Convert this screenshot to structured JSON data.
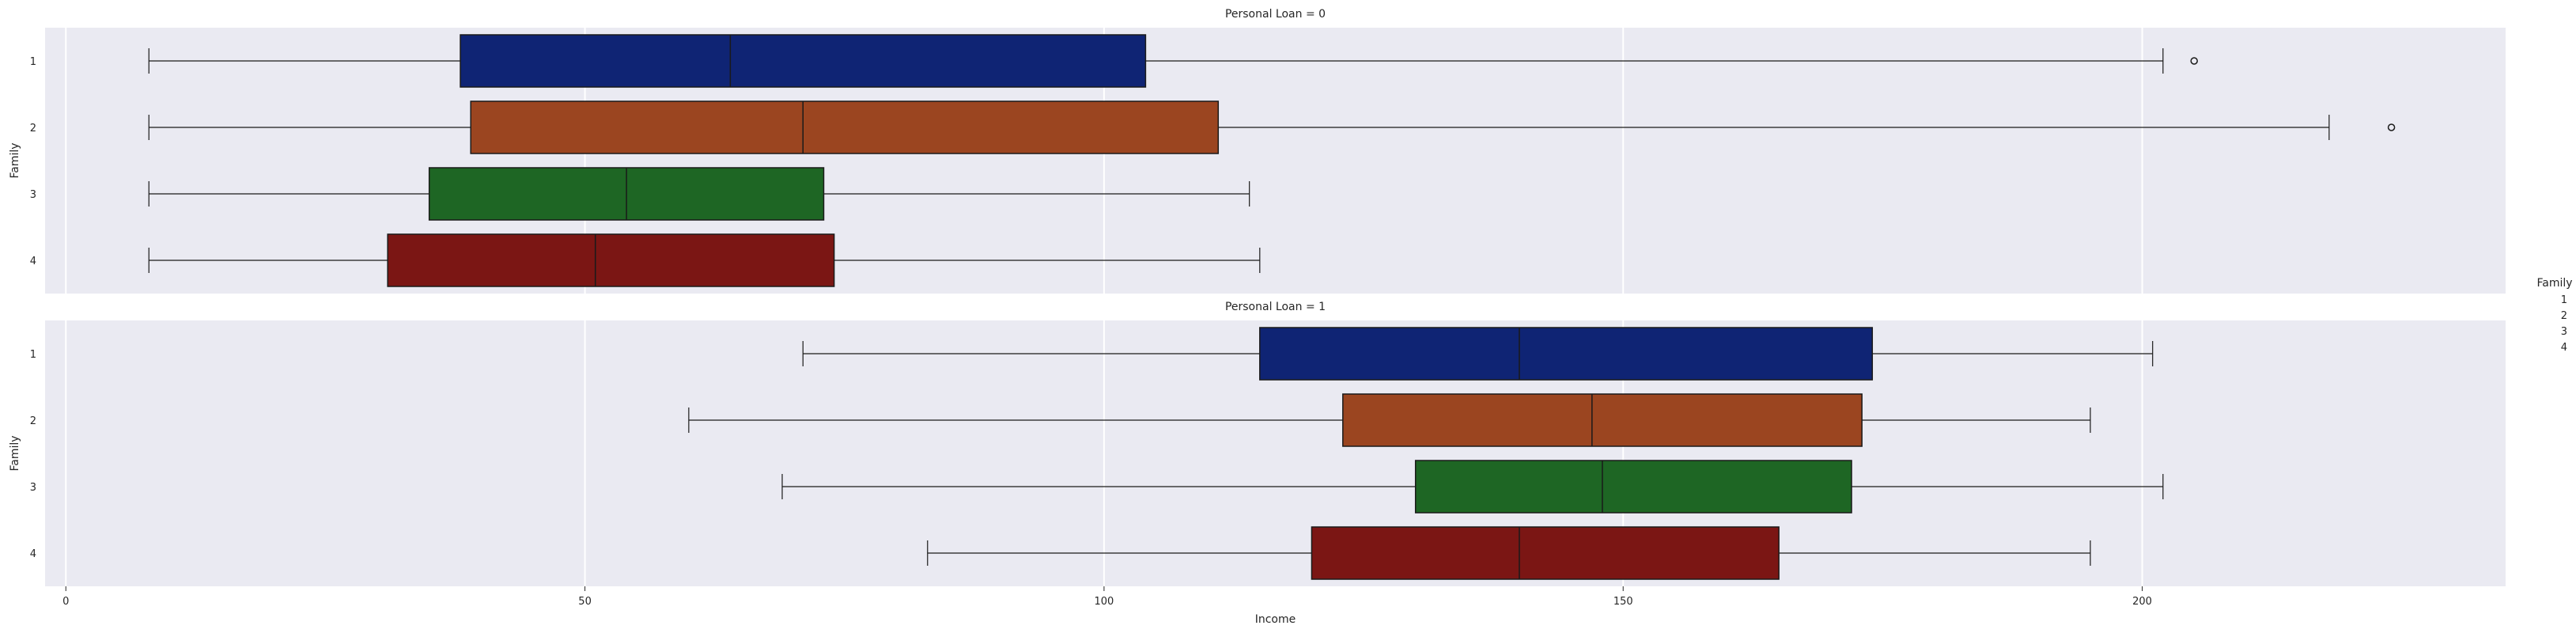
{
  "chart_data": {
    "type": "boxplot",
    "orientation": "horizontal",
    "xlabel": "Income",
    "ylabel": "Family",
    "xlim": [
      -2,
      235
    ],
    "xticks": [
      0,
      50,
      100,
      150,
      200
    ],
    "categories": [
      "1",
      "2",
      "3",
      "4"
    ],
    "grid": true,
    "legend": {
      "title": "Family",
      "entries": [
        "1",
        "2",
        "3",
        "4"
      ],
      "placement": "center-right"
    },
    "colors": {
      "1": "#0f2474",
      "2": "#9b4520",
      "3": "#1e6624",
      "4": "#7b1614"
    },
    "panels": [
      {
        "title": "Personal Loan = 0",
        "boxes": [
          {
            "category": "1",
            "whisker_low": 8,
            "q1": 38,
            "median": 64,
            "q3": 104,
            "whisker_high": 202,
            "fliers": [
              205
            ]
          },
          {
            "category": "2",
            "whisker_low": 8,
            "q1": 39,
            "median": 71,
            "q3": 111,
            "whisker_high": 218,
            "fliers": [
              224
            ]
          },
          {
            "category": "3",
            "whisker_low": 8,
            "q1": 35,
            "median": 54,
            "q3": 73,
            "whisker_high": 114,
            "fliers": []
          },
          {
            "category": "4",
            "whisker_low": 8,
            "q1": 31,
            "median": 51,
            "q3": 74,
            "whisker_high": 115,
            "fliers": []
          }
        ]
      },
      {
        "title": "Personal Loan = 1",
        "boxes": [
          {
            "category": "1",
            "whisker_low": 71,
            "q1": 115,
            "median": 140,
            "q3": 174,
            "whisker_high": 201,
            "fliers": []
          },
          {
            "category": "2",
            "whisker_low": 60,
            "q1": 123,
            "median": 147,
            "q3": 173,
            "whisker_high": 195,
            "fliers": []
          },
          {
            "category": "3",
            "whisker_low": 69,
            "q1": 130,
            "median": 148,
            "q3": 172,
            "whisker_high": 202,
            "fliers": []
          },
          {
            "category": "4",
            "whisker_low": 83,
            "q1": 120,
            "median": 140,
            "q3": 165,
            "whisker_high": 195,
            "fliers": []
          }
        ]
      }
    ]
  }
}
